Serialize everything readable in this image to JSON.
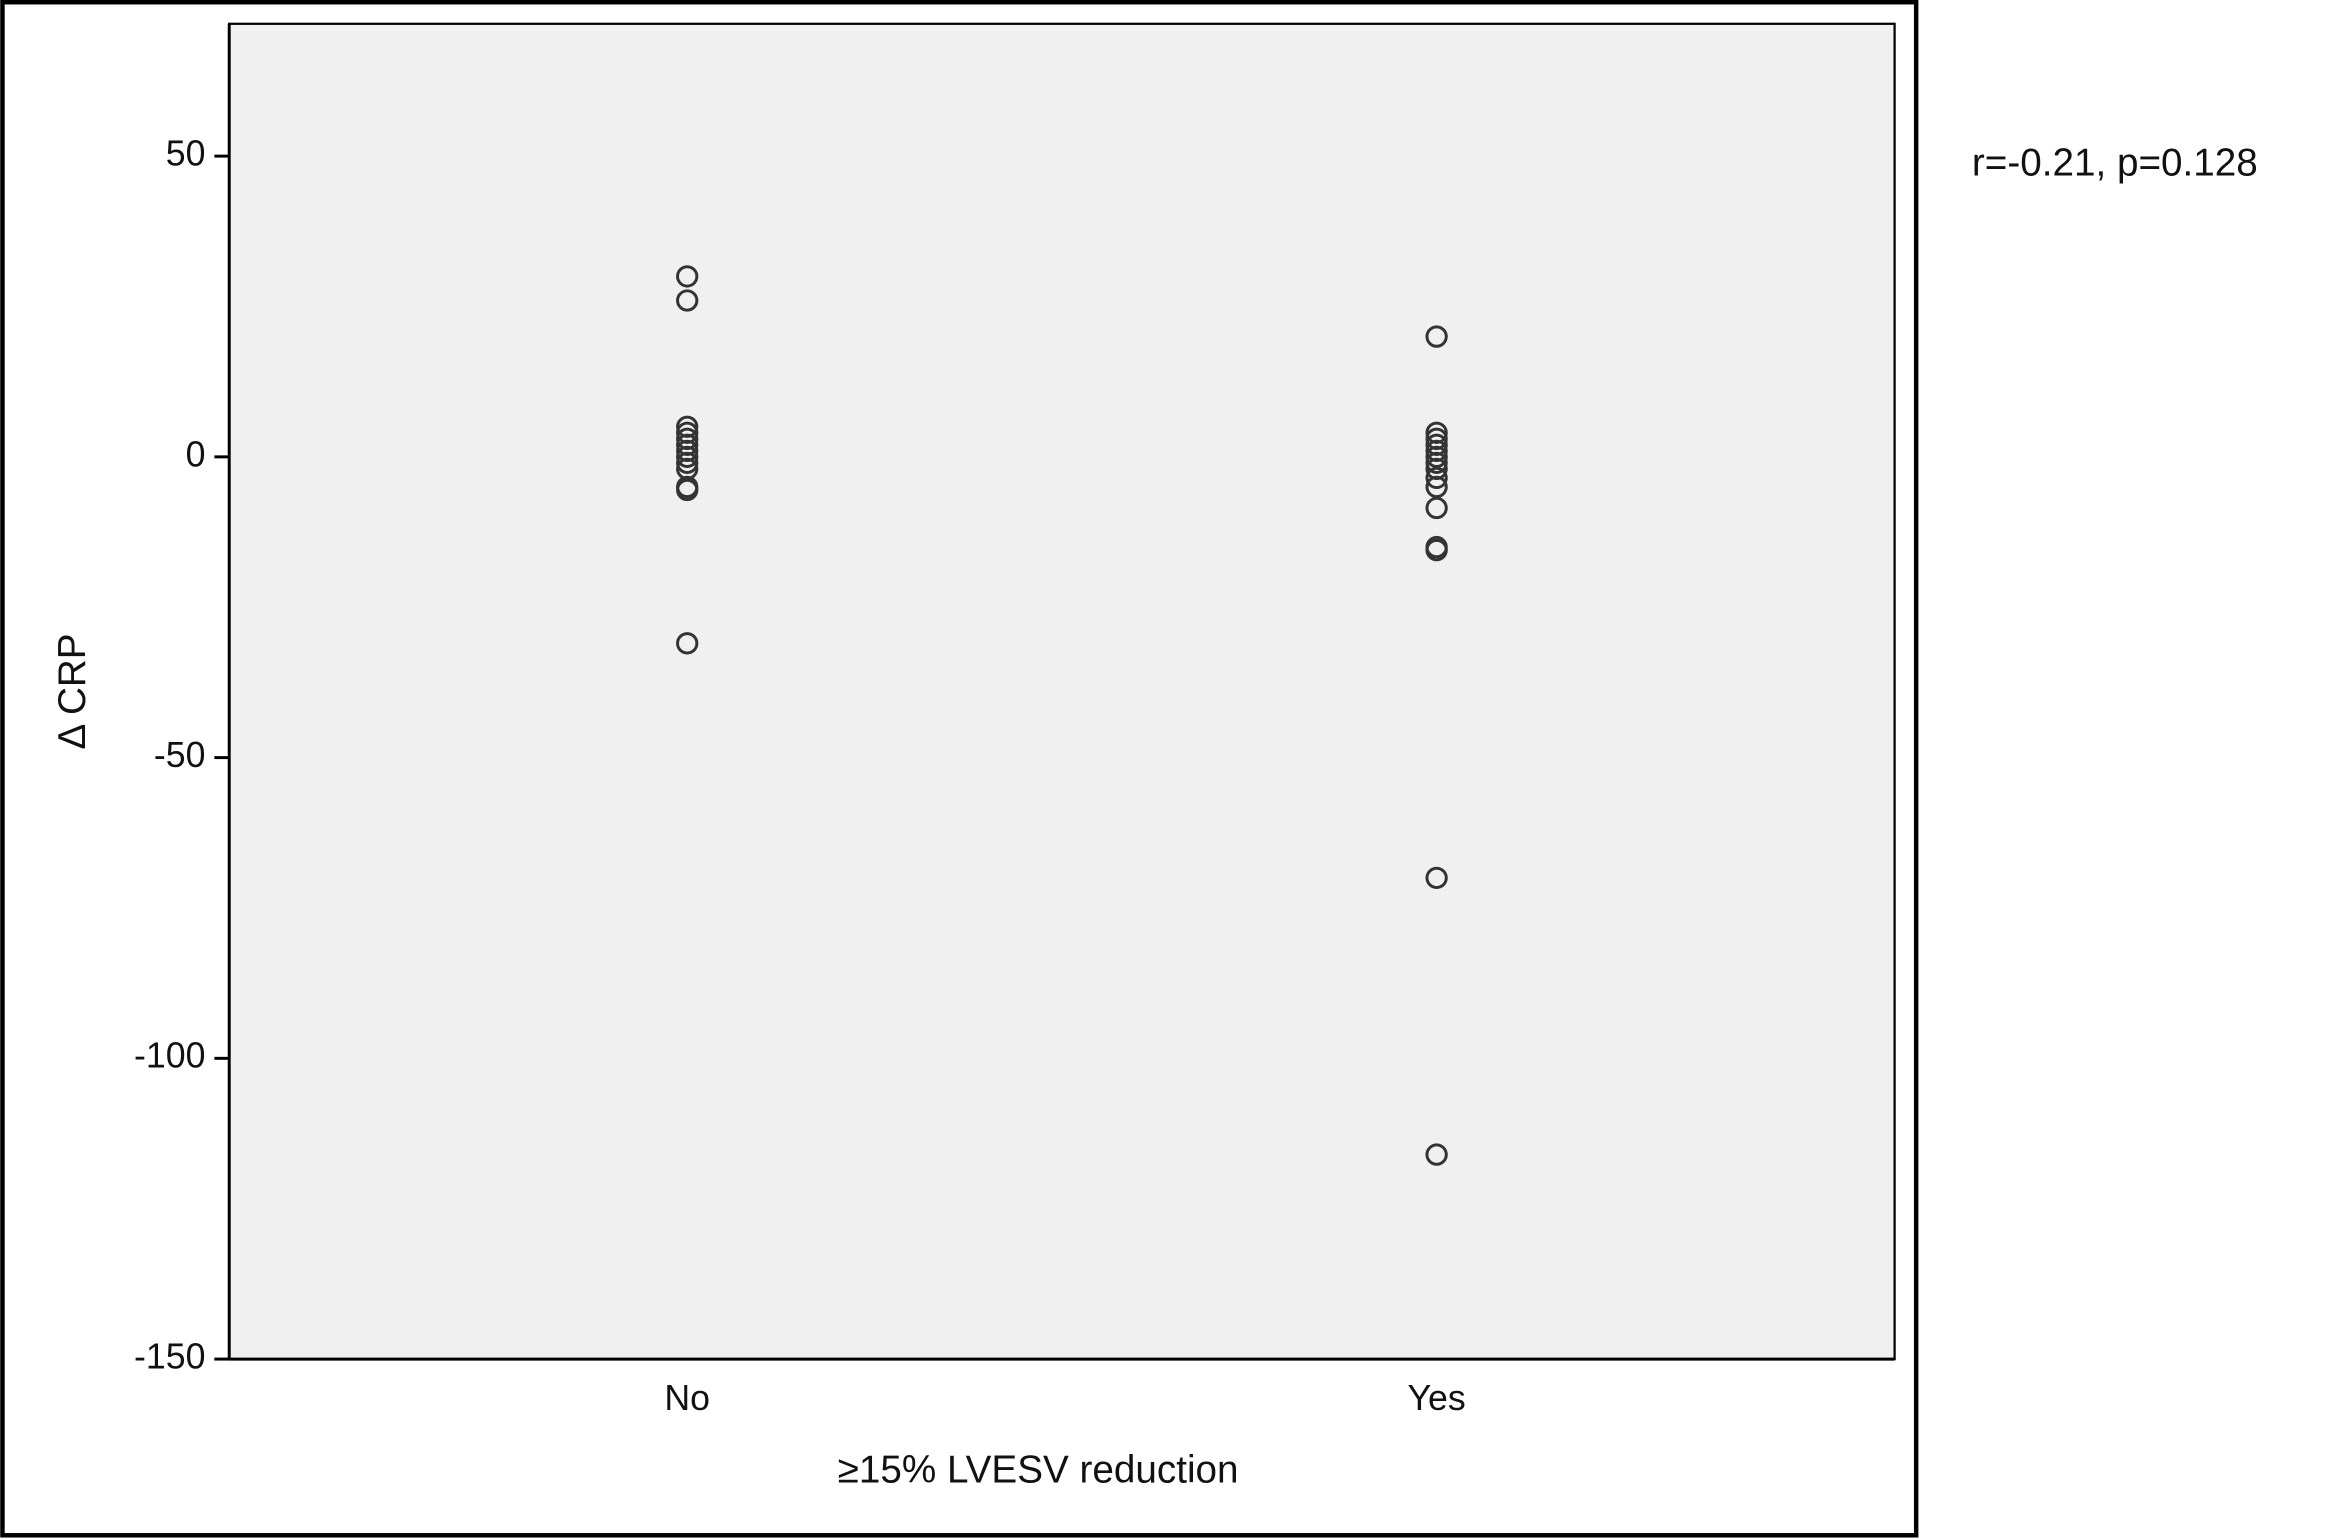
{
  "chart_data": {
    "type": "strip",
    "y_label": "Δ CRP",
    "x_label": "≥15% LVESV reduction",
    "annotation": "r=-0.21, p=0.128",
    "categories": [
      "No",
      "Yes"
    ],
    "values": [
      [
        30,
        26,
        5,
        4,
        3,
        2,
        1,
        0,
        -1,
        -2,
        -5,
        -5.5,
        -31
      ],
      [
        20,
        4,
        3,
        2,
        1,
        0,
        -1,
        -2,
        -3.5,
        -5,
        -8.5,
        -15,
        -15.5,
        -70,
        -116
      ]
    ],
    "color": "#333333",
    "background": "#f0f0f0",
    "ylim": [
      -150,
      72
    ],
    "yticks": [
      -150,
      -100,
      -50,
      0,
      50
    ],
    "grid": false
  }
}
